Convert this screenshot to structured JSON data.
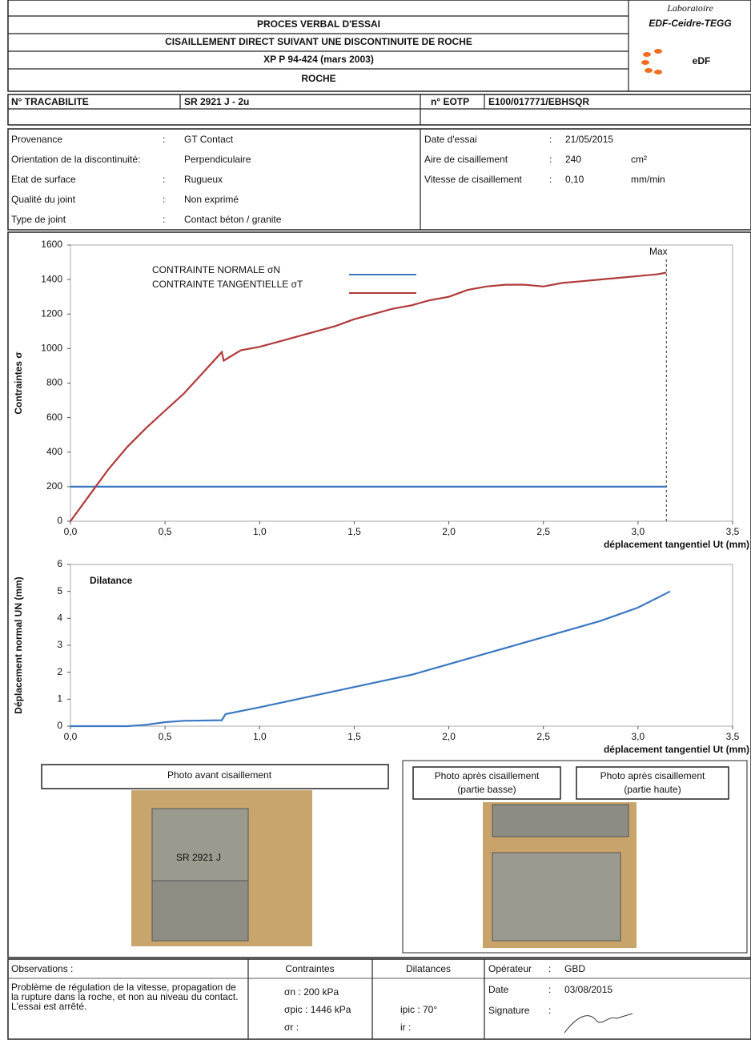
{
  "header": {
    "title": "PROCES VERBAL D'ESSAI",
    "subtitle": "CISAILLEMENT DIRECT SUIVANT UNE DISCONTINUITE DE ROCHE",
    "standard": "XP P 94-424 (mars 2003)",
    "material": "ROCHE",
    "lab": "Laboratoire",
    "lab_name": "EDF-Ceidre-TEGG",
    "logo": "eDF"
  },
  "ids": {
    "tracabilite_label": "N° TRACABILITE",
    "tracabilite": "SR 2921 J - 2u",
    "eotp_label": "n° EOTP",
    "eotp": "E100/017771/EBHSQR"
  },
  "info": {
    "left": [
      [
        "Provenance",
        ":",
        "GT Contact"
      ],
      [
        "Orientation de la discontinuité:",
        "",
        "Perpendiculaire"
      ],
      [
        "Etat de surface",
        ":",
        "Rugueux"
      ],
      [
        "Qualité du joint",
        ":",
        "Non exprimé"
      ],
      [
        "Type de joint",
        ":",
        "Contact béton / granite"
      ]
    ],
    "right": [
      [
        "Date d'essai",
        ":",
        "21/05/2015",
        ""
      ],
      [
        "Aire de cisaillement",
        ":",
        "240",
        "cm²"
      ],
      [
        "Vitesse de cisaillement",
        ":",
        "0,10",
        "mm/min"
      ]
    ]
  },
  "chart_data": [
    {
      "type": "line",
      "ylabel": "Contraintes σ",
      "xlabel": "déplacement tangentiel Ut (mm)",
      "x": [
        0,
        0.1,
        0.2,
        0.3,
        0.4,
        0.5,
        0.6,
        0.7,
        0.8,
        0.81,
        0.9,
        1.0,
        1.1,
        1.2,
        1.3,
        1.4,
        1.5,
        1.6,
        1.7,
        1.8,
        1.9,
        2.0,
        2.1,
        2.2,
        2.3,
        2.4,
        2.5,
        2.6,
        2.7,
        2.8,
        2.9,
        3.0,
        3.1,
        3.15
      ],
      "series": [
        {
          "name": "CONTRAINTE NORMALE σN",
          "color": "#3b78c2",
          "values": [
            200,
            200,
            200,
            200,
            200,
            200,
            200,
            200,
            200,
            200,
            200,
            200,
            200,
            200,
            200,
            200,
            200,
            200,
            200,
            200,
            200,
            200,
            200,
            200,
            200,
            200,
            200,
            200,
            200,
            200,
            200,
            200,
            200,
            200
          ]
        },
        {
          "name": "CONTRAINTE TANGENTIELLE σT",
          "color": "#b03a3a",
          "values": [
            0,
            150,
            300,
            430,
            540,
            640,
            740,
            860,
            980,
            930,
            990,
            1010,
            1040,
            1070,
            1100,
            1130,
            1170,
            1200,
            1230,
            1250,
            1280,
            1300,
            1340,
            1360,
            1370,
            1370,
            1360,
            1380,
            1390,
            1400,
            1410,
            1420,
            1430,
            1440
          ]
        }
      ],
      "annotation": {
        "text": "Max",
        "x": 3.15
      },
      "xlim": [
        0,
        3.5
      ],
      "ylim": [
        0,
        1600
      ],
      "xticks": [
        {
          "value": 0,
          "label": "0,0"
        },
        {
          "value": 0.5,
          "label": "0,5"
        },
        {
          "value": 1,
          "label": "1,0"
        },
        {
          "value": 1.5,
          "label": "1,5"
        },
        {
          "value": 2,
          "label": "2,0"
        },
        {
          "value": 2.5,
          "label": "2,5"
        },
        {
          "value": 3,
          "label": "3,0"
        },
        {
          "value": 3.5,
          "label": "3,5"
        }
      ],
      "yticks": [
        0,
        200,
        400,
        600,
        800,
        1000,
        1200,
        1400,
        1600
      ]
    },
    {
      "type": "line",
      "title": "Dilatance",
      "ylabel": "Déplacement normal UN (mm)",
      "xlabel": "déplacement tangentiel Ut (mm)",
      "x": [
        0,
        0.2,
        0.3,
        0.4,
        0.5,
        0.6,
        0.8,
        0.82,
        1.0,
        1.2,
        1.4,
        1.6,
        1.8,
        2.0,
        2.2,
        2.4,
        2.6,
        2.8,
        3.0,
        3.17
      ],
      "series": [
        {
          "name": "Dilatance",
          "color": "#3b78c2",
          "values": [
            0,
            0,
            0,
            0.05,
            0.15,
            0.2,
            0.22,
            0.45,
            0.7,
            1.0,
            1.3,
            1.6,
            1.9,
            2.3,
            2.7,
            3.1,
            3.5,
            3.9,
            4.4,
            5.0
          ]
        }
      ],
      "xlim": [
        0,
        3.5
      ],
      "ylim": [
        0,
        6
      ],
      "xticks": [
        {
          "value": 0,
          "label": "0,0"
        },
        {
          "value": 0.5,
          "label": "0,5"
        },
        {
          "value": 1,
          "label": "1,0"
        },
        {
          "value": 1.5,
          "label": "1,5"
        },
        {
          "value": 2,
          "label": "2,0"
        },
        {
          "value": 2.5,
          "label": "2,5"
        },
        {
          "value": 3,
          "label": "3,0"
        },
        {
          "value": 3.5,
          "label": "3,5"
        }
      ],
      "yticks": [
        0,
        1,
        2,
        3,
        4,
        5,
        6
      ]
    }
  ],
  "photos": {
    "before": "Photo avant cisaillement",
    "after_low": [
      "Photo après cisaillement",
      "(partie basse)"
    ],
    "after_high": [
      "Photo après cisaillement",
      "(partie haute)"
    ],
    "sample_mark": "SR 2921 J"
  },
  "footer": {
    "observations_title": "Observations :",
    "observations": [
      "Problème de régulation de la vitesse, propagation de",
      "la rupture dans la roche, et non au niveau du contact.",
      "L'essai est arrêté."
    ],
    "contraintes_title": "Contraintes",
    "contraintes": [
      "σn : 200 kPa",
      "σpic : 1446 kPa",
      "σr :"
    ],
    "dilatances_title": "Dilatances",
    "dilatances": [
      "ipic : 70°",
      "ir :"
    ],
    "operator": [
      [
        "Opérateur",
        ":",
        "GBD"
      ],
      [
        "Date",
        ":",
        "03/08/2015"
      ],
      [
        "Signature",
        ":"
      ]
    ]
  }
}
